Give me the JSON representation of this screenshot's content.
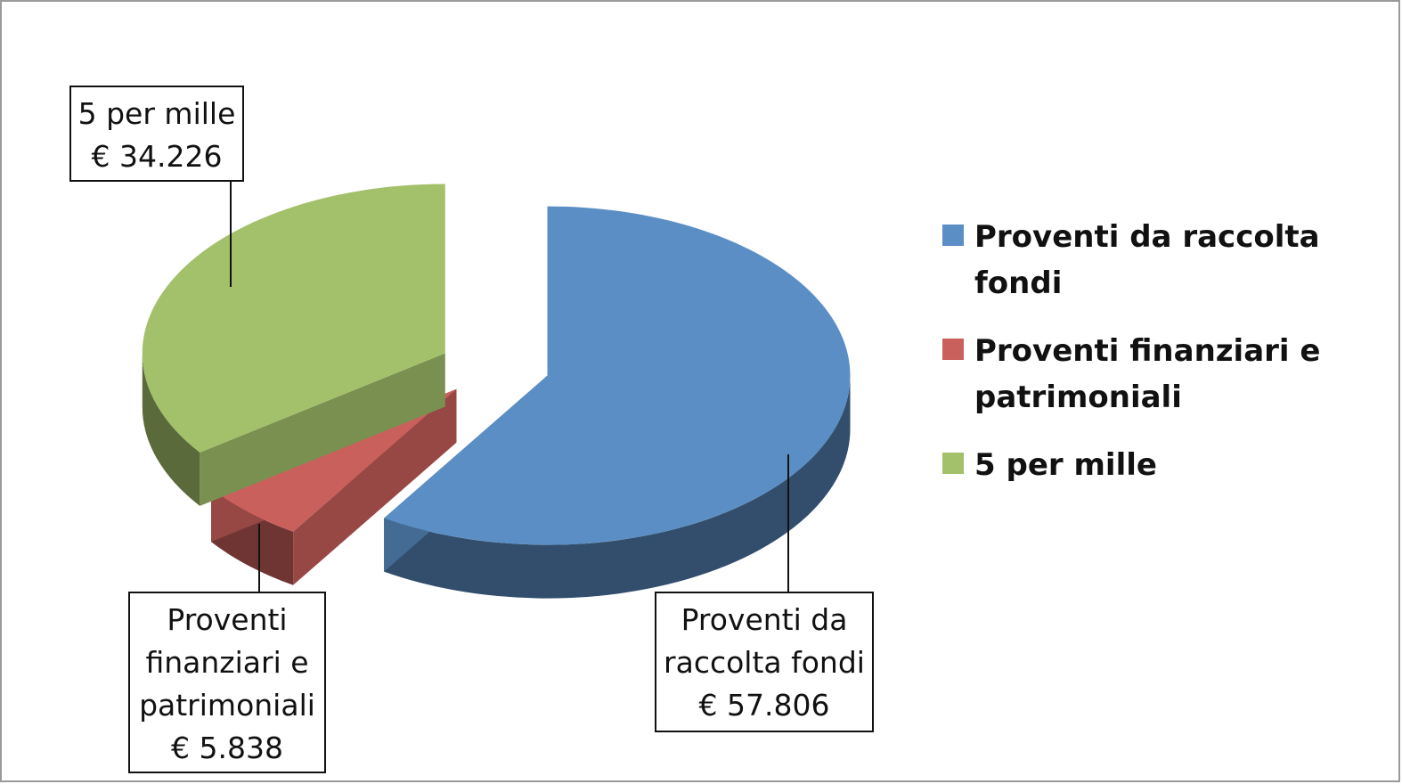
{
  "chart_data": {
    "type": "pie",
    "style": "3d-exploded",
    "title": "",
    "legend_position": "right",
    "slices": [
      {
        "name": "Proventi da raccolta fondi",
        "value": 57806,
        "color": "#5b8ec4",
        "label_lines": [
          "Proventi da",
          "raccolta fondi",
          "€ 57.806"
        ]
      },
      {
        "name": "Proventi finanziari e patrimoniali",
        "value": 5838,
        "color": "#c9605c",
        "label_lines": [
          "Proventi",
          "finanziari e",
          "patrimoniali",
          "€ 5.838"
        ]
      },
      {
        "name": "5 per mille",
        "value": 34226,
        "color": "#a3c06b",
        "label_lines": [
          "5 per mille",
          "€ 34.226"
        ]
      }
    ],
    "legend": [
      {
        "lines": [
          "Proventi da raccolta",
          "fondi"
        ],
        "color": "#5b8ec4"
      },
      {
        "lines": [
          "Proventi finanziari e",
          "patrimoniali"
        ],
        "color": "#c9605c"
      },
      {
        "lines": [
          "5 per mille"
        ],
        "color": "#a3c06b"
      }
    ]
  }
}
